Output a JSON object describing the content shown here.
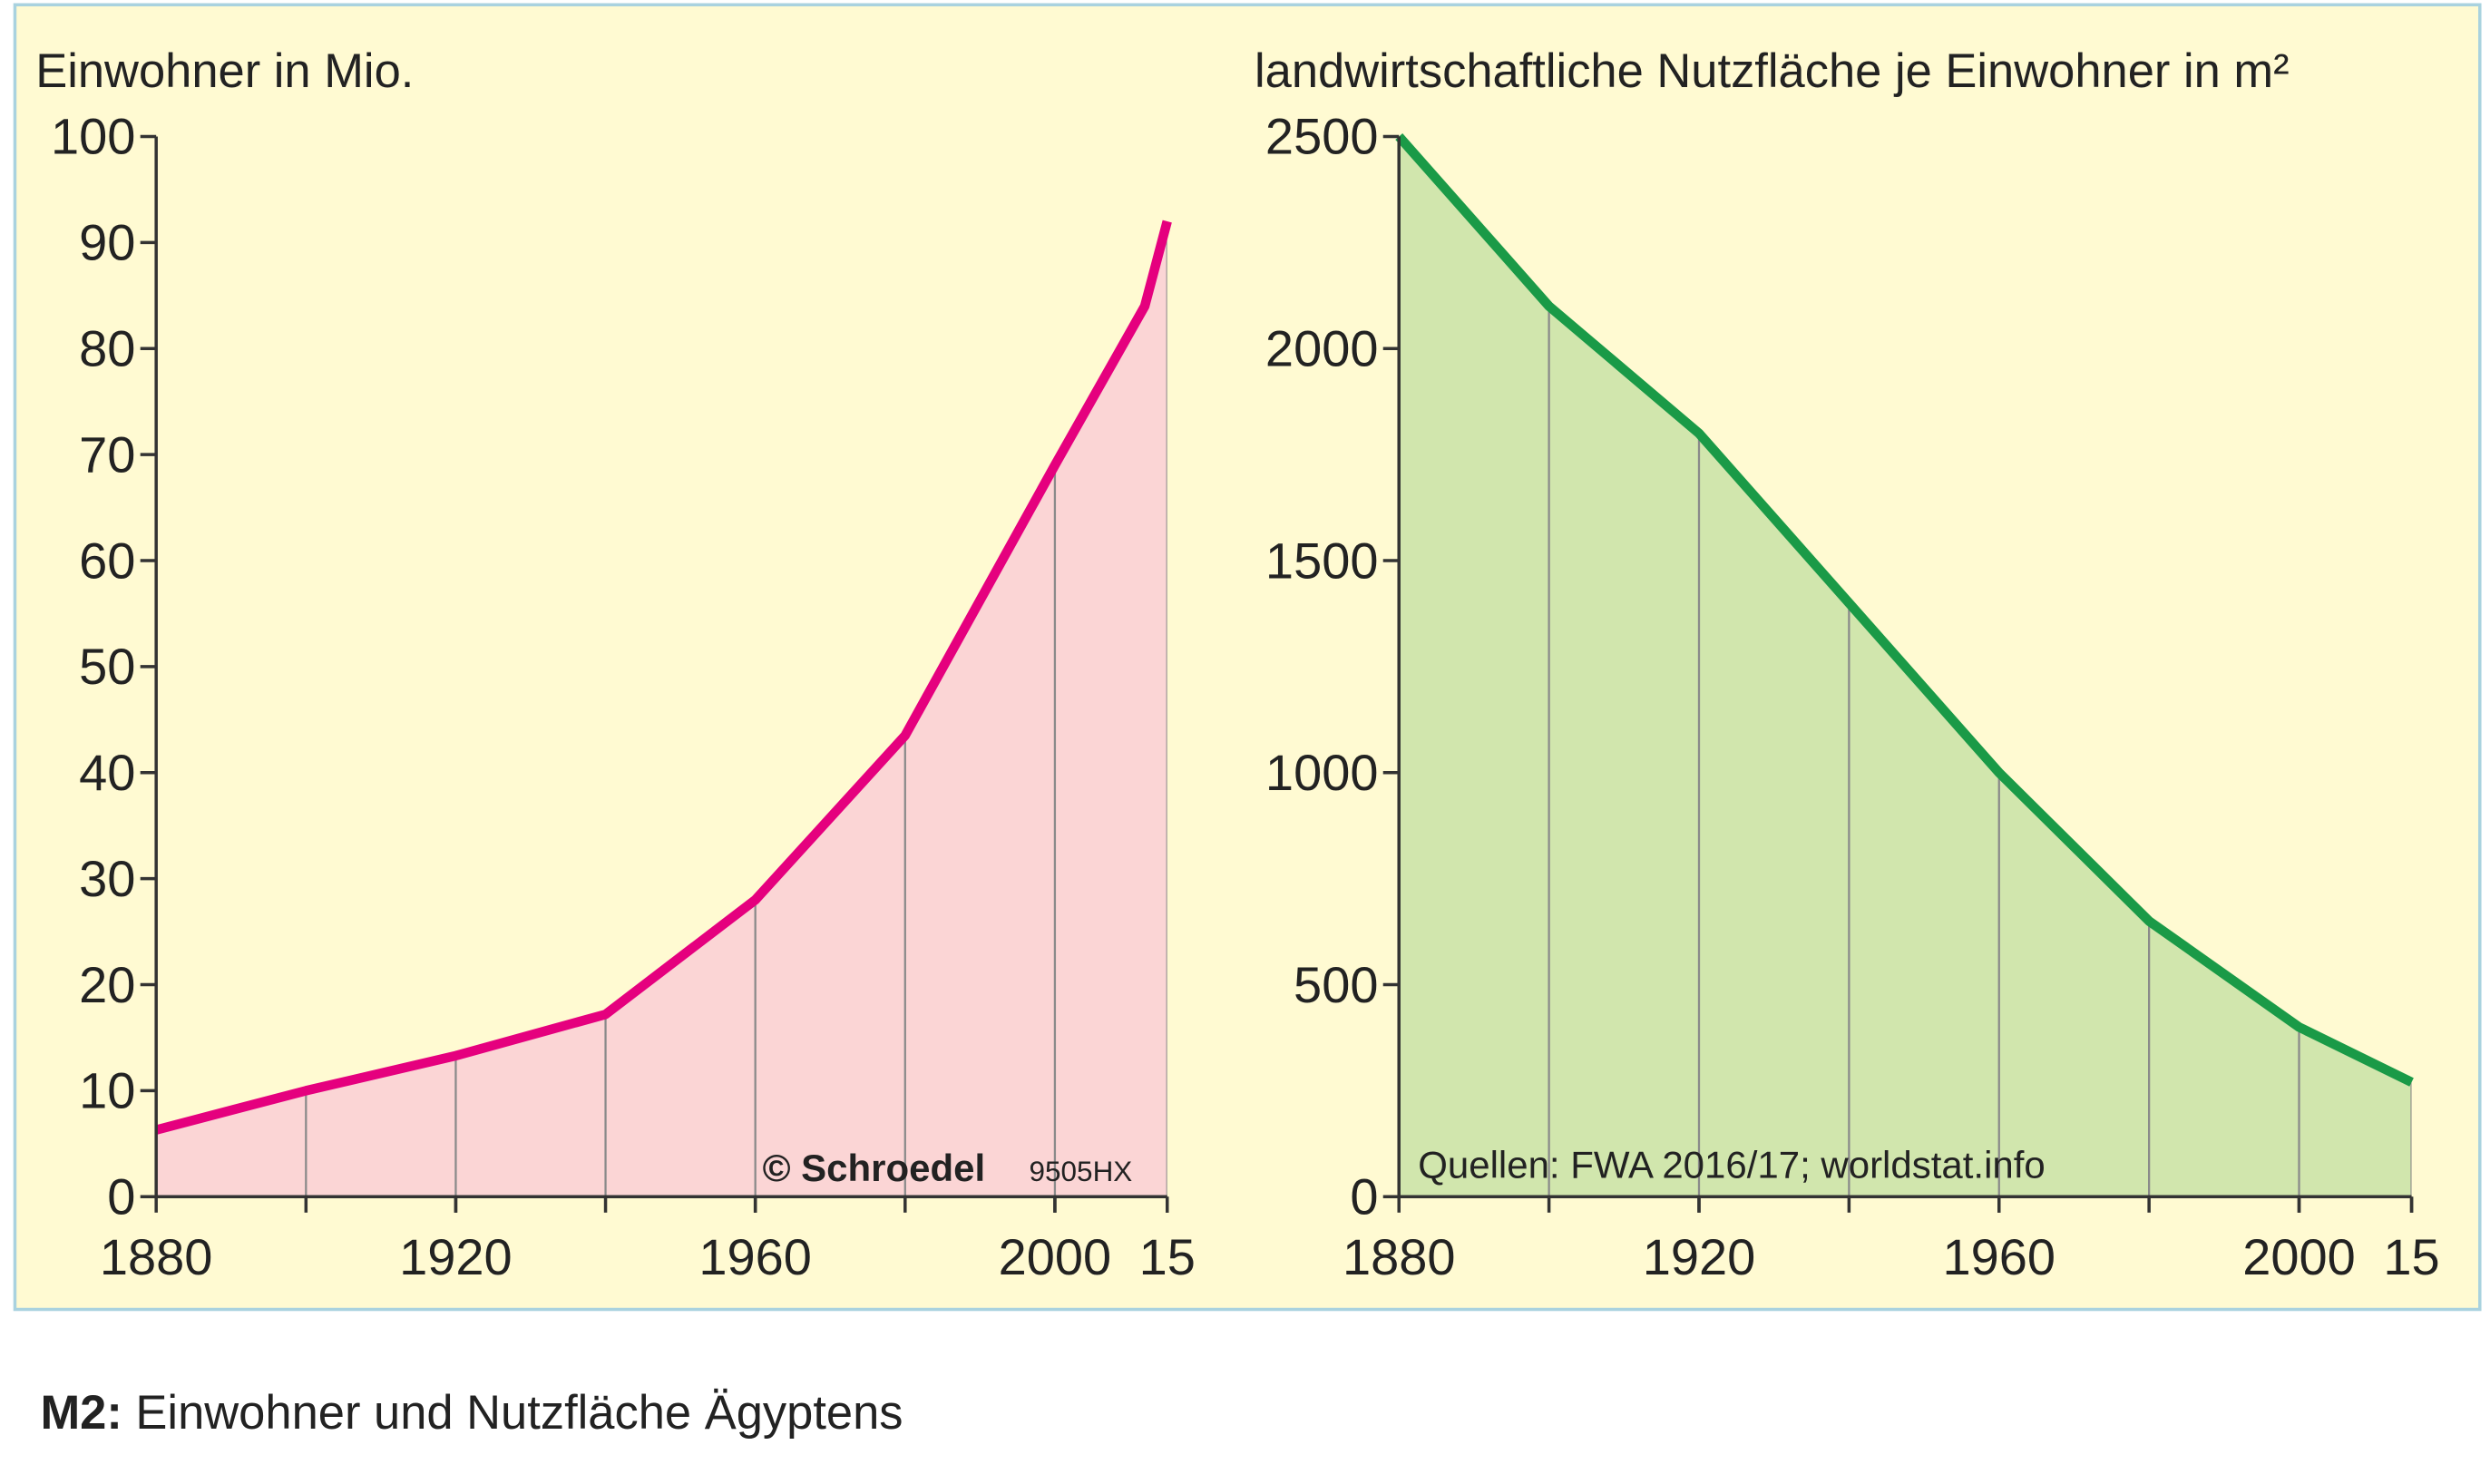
{
  "chart_data": [
    {
      "type": "area-line",
      "title": "Einwohner in Mio.",
      "x": [
        1880,
        1900,
        1920,
        1940,
        1960,
        1980,
        2000,
        2012,
        2015
      ],
      "series": [
        {
          "color": "#e5007e",
          "fill": "#fbd5d5",
          "values": [
            6.3,
            10,
            13.3,
            17.2,
            28,
            43.5,
            69,
            84,
            92
          ]
        }
      ],
      "xlim": [
        1880,
        2015
      ],
      "ylim": [
        0,
        100
      ],
      "xticks": [
        1880,
        1920,
        1960,
        2000,
        {
          "value": 2015,
          "label": "15"
        }
      ],
      "xgrid": [
        1900,
        1920,
        1940,
        1960,
        1980,
        2000,
        2015
      ],
      "yticks": [
        0,
        10,
        20,
        30,
        40,
        50,
        60,
        70,
        80,
        90,
        100
      ],
      "annotations": [
        "© Schroedel",
        "9505HX"
      ]
    },
    {
      "type": "area-line",
      "title": "landwirtschaftliche Nutzfläche je Einwohner in m²",
      "x": [
        1880,
        1900,
        1920,
        1940,
        1960,
        1980,
        2000,
        2015
      ],
      "series": [
        {
          "color": "#1a9a47",
          "fill": "#d1e6ad",
          "values": [
            2500,
            2100,
            1800,
            1400,
            1000,
            650,
            400,
            270
          ]
        }
      ],
      "xlim": [
        1880,
        2015
      ],
      "ylim": [
        0,
        2500
      ],
      "xticks": [
        1880,
        1920,
        1960,
        2000,
        {
          "value": 2015,
          "label": "15"
        }
      ],
      "xgrid": [
        1900,
        1920,
        1940,
        1960,
        1980,
        2000,
        2015
      ],
      "yticks": [
        0,
        500,
        1000,
        1500,
        2000,
        2500
      ],
      "annotations": [
        "Quellen: FWA 2016/17; worldstat.info"
      ]
    }
  ],
  "caption": {
    "label": "M2:",
    "text": "Einwohner und Nutzfläche Ägyptens"
  }
}
